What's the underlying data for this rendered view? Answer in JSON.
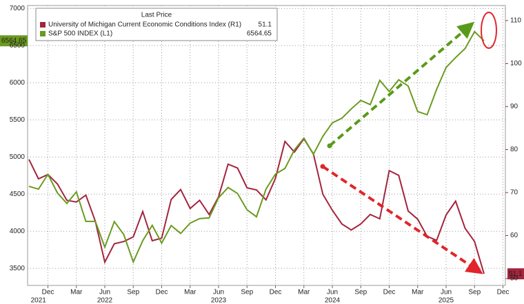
{
  "chart_data": {
    "type": "line",
    "legend_title": "Last Price",
    "x": [
      "2021-10",
      "2021-11",
      "2021-12",
      "2022-01",
      "2022-02",
      "2022-03",
      "2022-04",
      "2022-05",
      "2022-06",
      "2022-07",
      "2022-08",
      "2022-09",
      "2022-10",
      "2022-11",
      "2022-12",
      "2023-01",
      "2023-02",
      "2023-03",
      "2023-04",
      "2023-05",
      "2023-06",
      "2023-07",
      "2023-08",
      "2023-09",
      "2023-10",
      "2023-11",
      "2023-12",
      "2024-01",
      "2024-02",
      "2024-03",
      "2024-04",
      "2024-05",
      "2024-06",
      "2024-07",
      "2024-08",
      "2024-09",
      "2024-10",
      "2024-11",
      "2024-12",
      "2025-01",
      "2025-02",
      "2025-03",
      "2025-04",
      "2025-05",
      "2025-06",
      "2025-07",
      "2025-08",
      "2025-09",
      "2025-10"
    ],
    "series": [
      {
        "name": "University of Michigan Current Economic Conditions Index  (R1)",
        "color": "#a3243d",
        "axis": "y2",
        "values": [
          77.7,
          73.2,
          74.2,
          72.0,
          68.2,
          67.8,
          69.4,
          63.3,
          53.8,
          58.1,
          58.6,
          59.7,
          65.6,
          58.8,
          59.4,
          68.4,
          70.7,
          66.3,
          68.2,
          64.9,
          69.0,
          76.6,
          75.7,
          71.1,
          70.6,
          68.3,
          73.3,
          81.9,
          79.4,
          82.5,
          79.0,
          69.6,
          65.9,
          62.7,
          61.3,
          62.7,
          64.9,
          63.9,
          75.1,
          74.0,
          65.7,
          63.8,
          59.8,
          58.9,
          64.8,
          68.0,
          61.7,
          58.6,
          51.1
        ]
      },
      {
        "name": "S&P 500 INDEX  (L1)",
        "color": "#6a9a1f",
        "values": [
          4605,
          4567,
          4766,
          4516,
          4374,
          4530,
          4132,
          4132,
          3785,
          4130,
          3955,
          3586,
          3872,
          4080,
          3840,
          4077,
          3970,
          4109,
          4169,
          4180,
          4450,
          4589,
          4508,
          4288,
          4194,
          4568,
          4770,
          4846,
          5096,
          5254,
          5036,
          5278,
          5460,
          5522,
          5648,
          5762,
          5705,
          6032,
          5882,
          6040,
          5955,
          5612,
          5569,
          5912,
          6205,
          6339,
          6460,
          6688,
          6564.65
        ]
      }
    ],
    "ylim": [
      3270,
      7040
    ],
    "yticks": [
      3500,
      4000,
      4500,
      5000,
      5500,
      6000,
      6500,
      7000
    ],
    "y2lim": [
      48.4,
      113.5
    ],
    "y2ticks": [
      50,
      60,
      70,
      80,
      90,
      100,
      110
    ],
    "xticks": [
      {
        "value": "2021-12",
        "label": "Dec"
      },
      {
        "value": "2022-03",
        "label": "Mar"
      },
      {
        "value": "2022-06",
        "label": "Jun"
      },
      {
        "value": "2022-09",
        "label": "Sep"
      },
      {
        "value": "2022-12",
        "label": "Dec"
      },
      {
        "value": "2023-03",
        "label": "Mar"
      },
      {
        "value": "2023-06",
        "label": "Jun"
      },
      {
        "value": "2023-09",
        "label": "Sep"
      },
      {
        "value": "2023-12",
        "label": "Dec"
      },
      {
        "value": "2024-03",
        "label": "Mar"
      },
      {
        "value": "2024-06",
        "label": "Jun"
      },
      {
        "value": "2024-09",
        "label": "Sep"
      },
      {
        "value": "2024-12",
        "label": "Dec"
      },
      {
        "value": "2025-03",
        "label": "Mar"
      },
      {
        "value": "2025-06",
        "label": "Jun"
      },
      {
        "value": "2025-09",
        "label": "Sep"
      },
      {
        "value": "2025-12",
        "label": "Dec"
      }
    ],
    "xticks_years": [
      {
        "value": "2021-11",
        "label": "2021"
      },
      {
        "value": "2022-06",
        "label": "2022"
      },
      {
        "value": "2023-06",
        "label": "2023"
      },
      {
        "value": "2024-06",
        "label": "2024"
      },
      {
        "value": "2025-06",
        "label": "2025"
      }
    ],
    "grid": true
  }
}
